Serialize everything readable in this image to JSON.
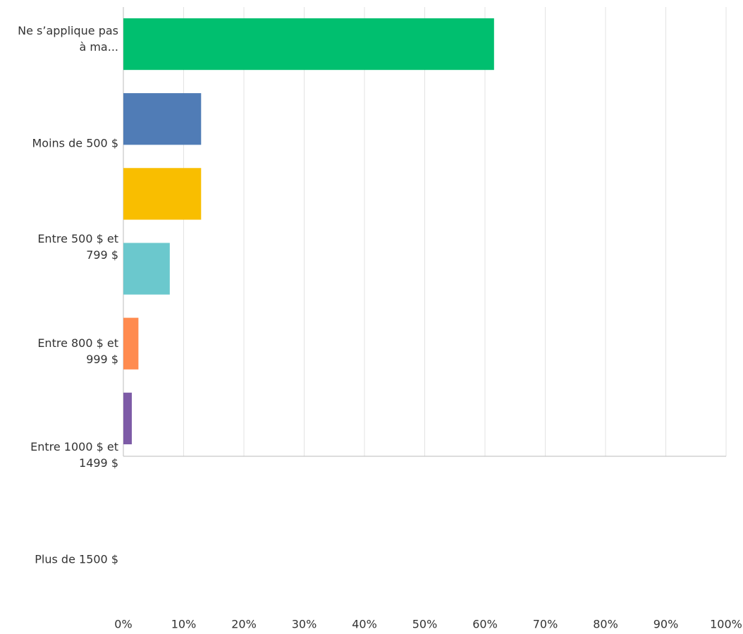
{
  "chart_data": {
    "type": "bar",
    "orientation": "horizontal",
    "categories": [
      "Ne s’applique pas à ma...",
      "Moins de 500 $",
      "Entre 500 $ et 799 $",
      "Entre 800 $ et 999 $",
      "Entre 1000 $ et 1499 $",
      "Plus de 1500 $"
    ],
    "values": [
      61.5,
      12.9,
      12.9,
      7.7,
      2.5,
      1.4
    ],
    "colors": [
      "#00bf6f",
      "#507cb6",
      "#f9be00",
      "#6bc8cd",
      "#ff8b4f",
      "#7d5ba6"
    ],
    "xlim": [
      0,
      100
    ],
    "xticks": [
      {
        "value": 0,
        "label": "0%"
      },
      {
        "value": 10,
        "label": "10%"
      },
      {
        "value": 20,
        "label": "20%"
      },
      {
        "value": 30,
        "label": "30%"
      },
      {
        "value": 40,
        "label": "40%"
      },
      {
        "value": 50,
        "label": "50%"
      },
      {
        "value": 60,
        "label": "60%"
      },
      {
        "value": 70,
        "label": "70%"
      },
      {
        "value": 80,
        "label": "80%"
      },
      {
        "value": 90,
        "label": "90%"
      },
      {
        "value": 100,
        "label": "100%"
      }
    ],
    "grid": true
  }
}
